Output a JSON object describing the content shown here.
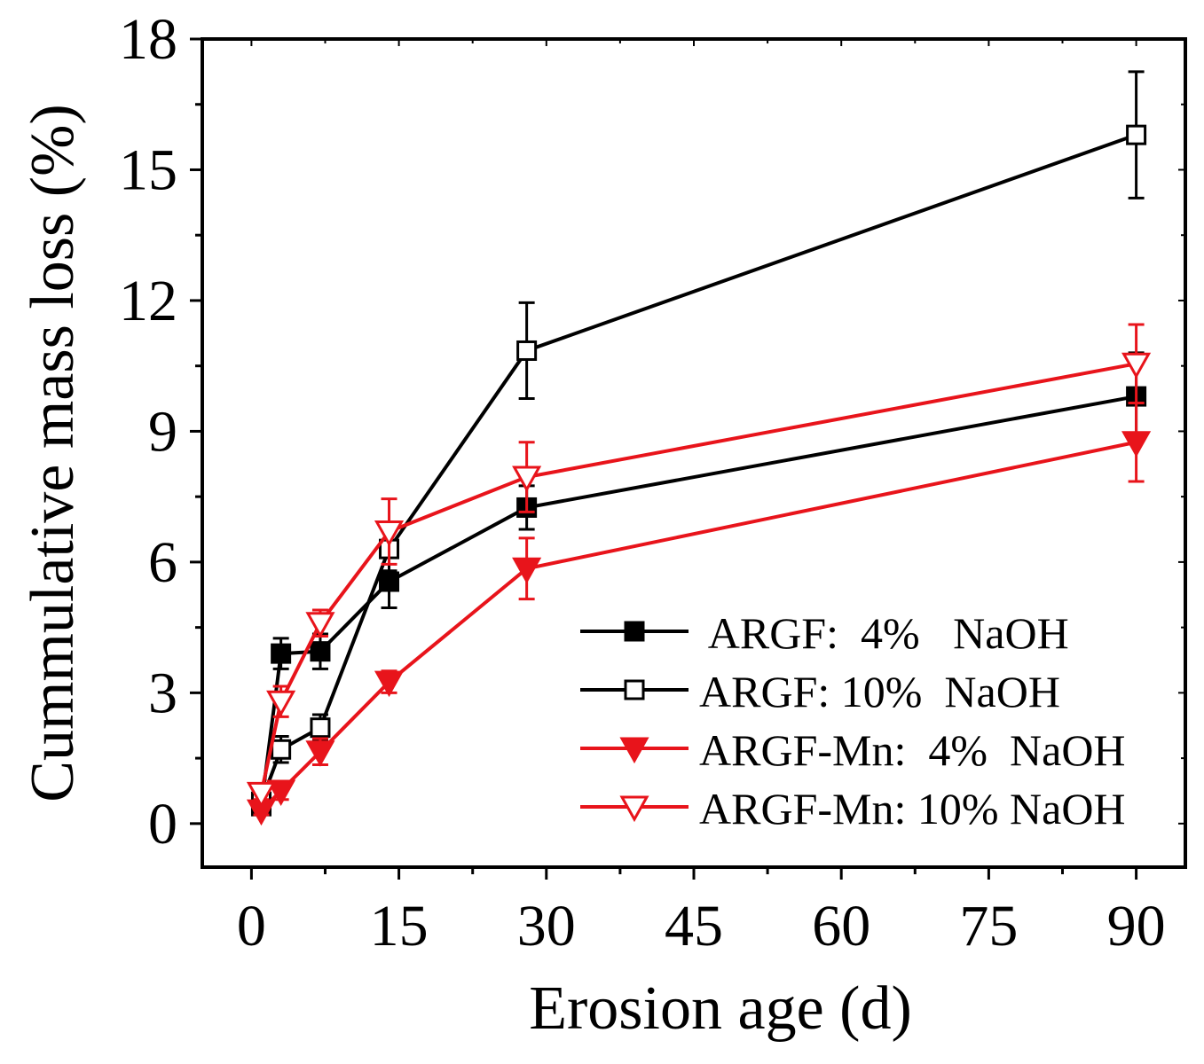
{
  "chart_data": {
    "type": "line",
    "title": "",
    "xlabel": "Erosion age (d)",
    "ylabel": "Cummulative mass loss (%)",
    "xlim": [
      -5,
      95
    ],
    "ylim": [
      -1,
      18
    ],
    "xticks": [
      0,
      15,
      30,
      45,
      60,
      75,
      90
    ],
    "yticks": [
      0,
      3,
      6,
      9,
      12,
      15,
      18
    ],
    "xtick_labels": [
      "0",
      "15",
      "30",
      "45",
      "60",
      "75",
      "90"
    ],
    "ytick_labels": [
      "0",
      "3",
      "6",
      "9",
      "12",
      "15",
      "18"
    ],
    "grid": false,
    "legend_position": "lower-right",
    "series": [
      {
        "name": " ARGF:  4%   NaOH",
        "color": "#000000",
        "marker": "square-filled",
        "x": [
          1,
          3,
          7,
          14,
          28,
          90
        ],
        "y": [
          0.4,
          3.9,
          3.95,
          5.55,
          7.25,
          9.8
        ],
        "err": [
          0.15,
          0.35,
          0.4,
          0.6,
          0.5,
          1.0
        ]
      },
      {
        "name": "ARGF: 10%  NaOH",
        "color": "#000000",
        "marker": "square-open",
        "x": [
          1,
          3,
          7,
          14,
          28,
          90
        ],
        "y": [
          0.5,
          1.7,
          2.2,
          6.3,
          10.85,
          15.8
        ],
        "err": [
          0.15,
          0.3,
          0.3,
          0.5,
          1.1,
          1.45
        ]
      },
      {
        "name": "ARGF-Mn:  4%  NaOH",
        "color": "#e8141b",
        "marker": "triangle-down-filled",
        "x": [
          1,
          3,
          7,
          14,
          28,
          90
        ],
        "y": [
          0.3,
          0.75,
          1.65,
          3.25,
          5.85,
          8.75
        ],
        "err": [
          0.1,
          0.2,
          0.3,
          0.25,
          0.7,
          0.9
        ]
      },
      {
        "name": "ARGF-Mn: 10% NaOH",
        "color": "#e8141b",
        "marker": "triangle-down-open",
        "x": [
          1,
          3,
          7,
          14,
          28,
          90
        ],
        "y": [
          0.7,
          2.8,
          4.6,
          6.7,
          7.95,
          10.55
        ],
        "err": [
          0.15,
          0.35,
          0.3,
          0.75,
          0.8,
          0.9
        ]
      }
    ]
  }
}
